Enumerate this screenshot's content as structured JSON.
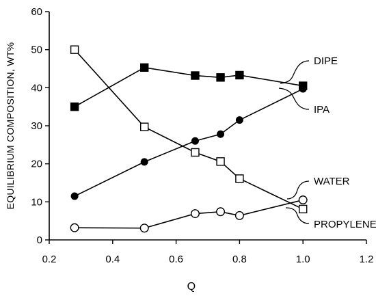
{
  "chart_data": {
    "type": "line",
    "title": "",
    "xlabel": "Q",
    "ylabel": "EQUILIBRIUM COMPOSITION, WT%",
    "xlim": [
      0.2,
      1.2
    ],
    "ylim": [
      0,
      60
    ],
    "x_ticks": [
      "0.2",
      "0.4",
      "0.6",
      "0.8",
      "1.0",
      "1.2"
    ],
    "y_ticks": [
      "0",
      "10",
      "20",
      "30",
      "40",
      "50",
      "60"
    ],
    "grid": false,
    "series": [
      {
        "name": "DIPE",
        "marker": "filled-square",
        "x": [
          0.28,
          0.5,
          0.66,
          0.74,
          0.8,
          1.0
        ],
        "y": [
          35,
          45.3,
          43.2,
          42.7,
          43.3,
          40.5
        ]
      },
      {
        "name": "IPA",
        "marker": "filled-circle",
        "x": [
          0.28,
          0.5,
          0.66,
          0.74,
          0.8,
          1.0
        ],
        "y": [
          11.5,
          20.5,
          26,
          27.8,
          31.5,
          39.7
        ]
      },
      {
        "name": "PROPYLENE",
        "marker": "open-square",
        "x": [
          0.28,
          0.5,
          0.66,
          0.74,
          0.8,
          1.0
        ],
        "y": [
          50,
          29.7,
          23,
          20.6,
          16.1,
          8.1
        ]
      },
      {
        "name": "WATER",
        "marker": "open-circle",
        "x": [
          0.28,
          0.5,
          0.66,
          0.74,
          0.8,
          1.0
        ],
        "y": [
          3.2,
          3.1,
          6.9,
          7.4,
          6.4,
          10.5
        ]
      }
    ]
  }
}
